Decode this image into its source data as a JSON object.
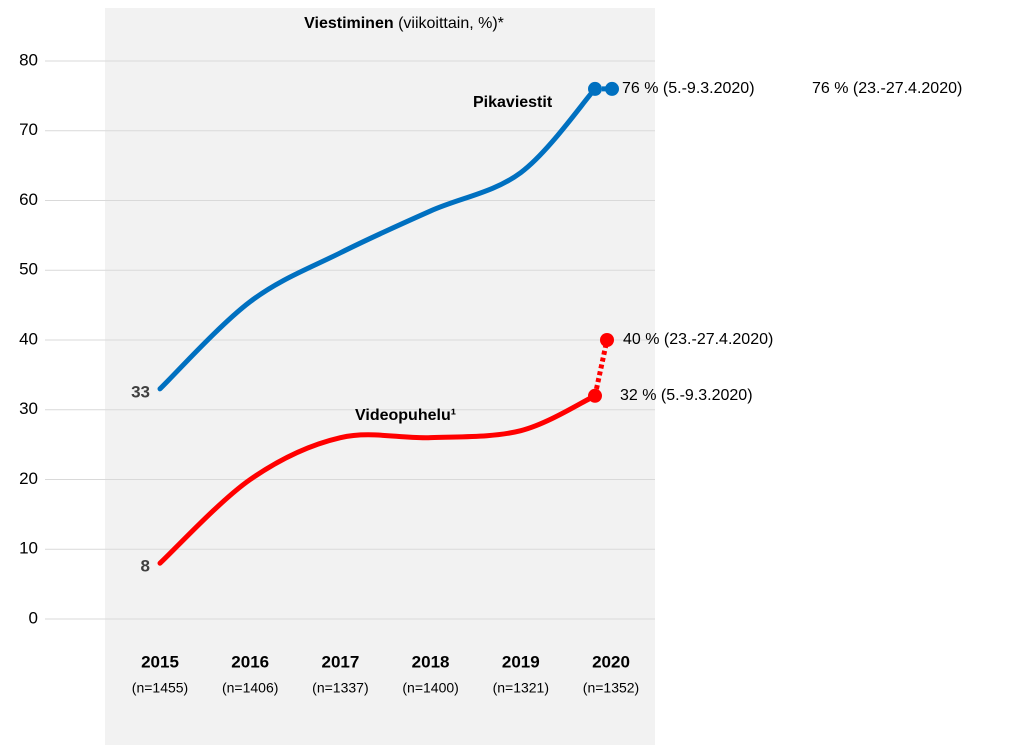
{
  "chart_data": {
    "type": "line",
    "title": "Viestiminen",
    "title_note": "(viikoittain, %)*",
    "categories": [
      "2015",
      "2016",
      "2017",
      "2018",
      "2019",
      "2020"
    ],
    "category_notes": [
      "(n=1455)",
      "(n=1406)",
      "(n=1337)",
      "(n=1400)",
      "(n=1321)",
      "(n=1352)"
    ],
    "ylim": [
      0,
      80
    ],
    "yticks": [
      0,
      10,
      20,
      30,
      40,
      50,
      60,
      70,
      80
    ],
    "grid": true,
    "series": [
      {
        "name": "Pikaviestit",
        "color": "#0070c0",
        "values": [
          33,
          45.5,
          52.5,
          58.5,
          64,
          76
        ],
        "value_labels": [
          "33",
          null,
          null,
          null,
          null,
          "76 % (5.-9.3.2020)"
        ],
        "late_value": 76,
        "late_label": "76 % (23.-27.4.2020)"
      },
      {
        "name": "Videopuhelu¹",
        "color": "#ff0000",
        "values": [
          8,
          20,
          26,
          26,
          27,
          32
        ],
        "value_labels": [
          "8",
          null,
          null,
          null,
          null,
          "32 % (5.-9.3.2020)"
        ],
        "late_value": 40,
        "late_label": "40 % (23.-27.4.2020)"
      }
    ]
  }
}
